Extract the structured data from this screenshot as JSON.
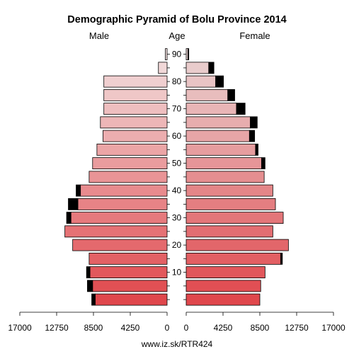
{
  "chart_data": {
    "type": "bar",
    "orientation": "population-pyramid",
    "title": "Demographic Pyramid of Bolu Province 2014",
    "left_label": "Male",
    "center_label": "Age",
    "right_label": "Female",
    "footer": "www.iz.sk/RTR424",
    "age_groups": [
      "0-4",
      "5-9",
      "10-14",
      "15-19",
      "20-24",
      "25-29",
      "30-34",
      "35-39",
      "40-44",
      "45-49",
      "50-54",
      "55-59",
      "60-64",
      "65-69",
      "70-74",
      "75-79",
      "80-84",
      "85-89",
      "90+"
    ],
    "age_tick_labels": [
      {
        "age": 10,
        "label": "10"
      },
      {
        "age": 20,
        "label": "20"
      },
      {
        "age": 30,
        "label": "30"
      },
      {
        "age": 40,
        "label": "40"
      },
      {
        "age": 50,
        "label": "50"
      },
      {
        "age": 60,
        "label": "60"
      },
      {
        "age": 70,
        "label": "70"
      },
      {
        "age": 80,
        "label": "80"
      },
      {
        "age": 90,
        "label": "90"
      }
    ],
    "x_ticks_left": [
      17000,
      12750,
      8500,
      4250,
      0
    ],
    "x_ticks_left_labels": [
      "17000",
      "12750",
      "8500",
      "4250",
      "0"
    ],
    "x_ticks_right": [
      0,
      4250,
      8500,
      12750,
      17000
    ],
    "x_ticks_right_labels": [
      "0",
      "4250",
      "8500",
      "12750",
      "17000"
    ],
    "xlim": [
      0,
      17000
    ],
    "series": [
      {
        "name": "Male",
        "values": [
          8300,
          8600,
          8900,
          9000,
          10900,
          11800,
          11100,
          10300,
          10000,
          9000,
          8600,
          8100,
          7400,
          7700,
          7300,
          7300,
          7300,
          1000,
          200
        ]
      },
      {
        "name": "Male (excess)",
        "values": [
          400,
          600,
          400,
          0,
          0,
          0,
          500,
          1100,
          500,
          0,
          0,
          0,
          0,
          0,
          0,
          0,
          0,
          0,
          0
        ]
      },
      {
        "name": "Female",
        "values": [
          8500,
          8600,
          9100,
          10900,
          11800,
          10000,
          11200,
          10300,
          10000,
          9000,
          8700,
          8000,
          7300,
          7400,
          5800,
          4800,
          3400,
          2600,
          200
        ]
      },
      {
        "name": "Female (excess)",
        "values": [
          0,
          0,
          0,
          200,
          0,
          0,
          0,
          0,
          0,
          0,
          400,
          300,
          600,
          800,
          1000,
          800,
          900,
          600,
          100
        ]
      }
    ],
    "colors": {
      "male_young": "#e0474c",
      "male_old": "#f2e0e0",
      "female_young": "#e0474c",
      "female_old": "#ead4d4",
      "excess": "#000000",
      "outline": "#000000"
    },
    "grid": false
  }
}
